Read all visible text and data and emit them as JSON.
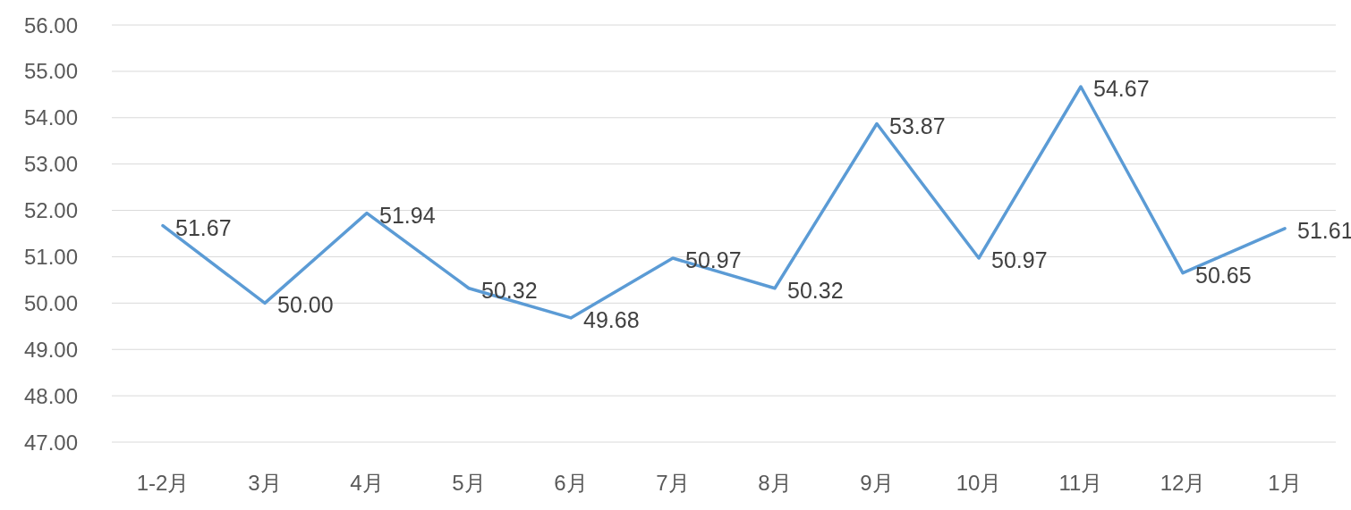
{
  "chart_data": {
    "type": "line",
    "categories": [
      "1-2月",
      "3月",
      "4月",
      "5月",
      "6月",
      "7月",
      "8月",
      "9月",
      "10月",
      "11月",
      "12月",
      "1月"
    ],
    "series": [
      {
        "color": "#5b9bd5",
        "values": [
          51.67,
          50.0,
          51.94,
          50.32,
          49.68,
          50.97,
          50.32,
          53.87,
          50.97,
          54.67,
          50.65,
          51.61
        ],
        "value_labels": [
          "51.67",
          "50.00",
          "51.94",
          "50.32",
          "49.68",
          "50.97",
          "50.32",
          "53.87",
          "50.97",
          "54.67",
          "50.65",
          "51.61"
        ]
      }
    ],
    "ylim": [
      47,
      56
    ],
    "yticks": [
      {
        "value": 47,
        "label": "47.00"
      },
      {
        "value": 48,
        "label": "48.00"
      },
      {
        "value": 49,
        "label": "49.00"
      },
      {
        "value": 50,
        "label": "50.00"
      },
      {
        "value": 51,
        "label": "51.00"
      },
      {
        "value": 52,
        "label": "52.00"
      },
      {
        "value": 53,
        "label": "53.00"
      },
      {
        "value": 54,
        "label": "54.00"
      },
      {
        "value": 55,
        "label": "55.00"
      },
      {
        "value": 56,
        "label": "56.00"
      }
    ],
    "grid": "y"
  }
}
